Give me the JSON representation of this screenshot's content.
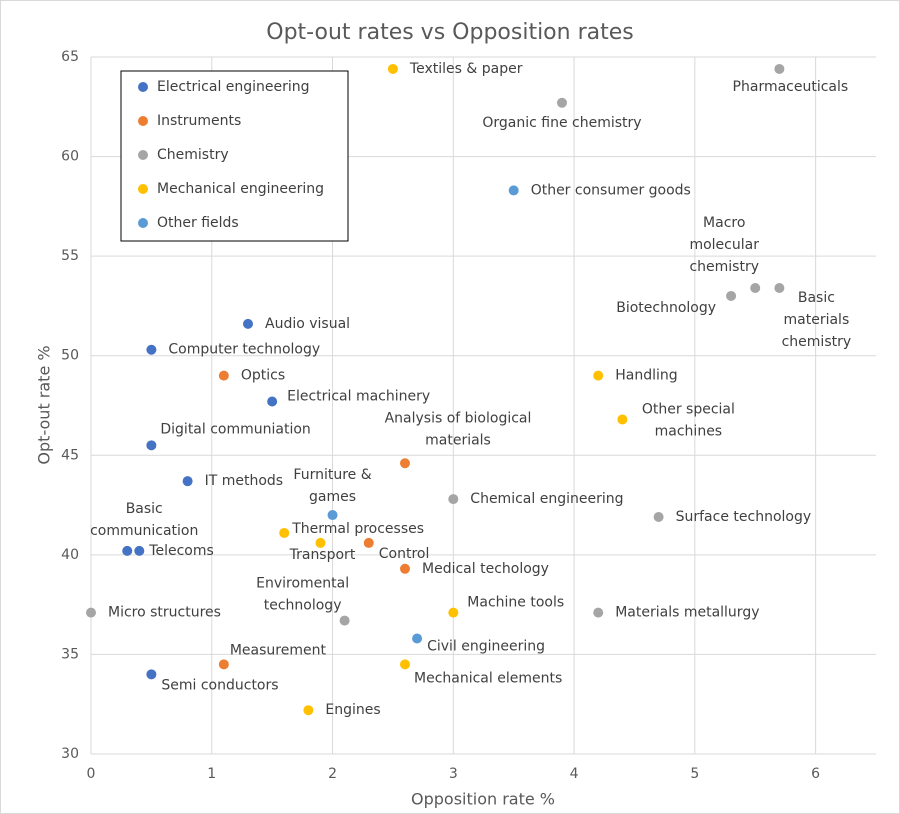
{
  "chart_data": {
    "type": "scatter",
    "title": "Opt-out rates vs Opposition rates",
    "x_label": "Opposition rate %",
    "y_label": "Opt-out rate %",
    "xlim": [
      0,
      6.5
    ],
    "ylim": [
      30,
      65
    ],
    "xticks": [
      0,
      1,
      2,
      3,
      4,
      5,
      6
    ],
    "yticks": [
      30,
      35,
      40,
      45,
      50,
      55,
      60,
      65
    ],
    "grid": true,
    "legend": "upper left",
    "series": [
      {
        "name": "Electrical engineering",
        "color": "#4472c4",
        "x": [
          1.3,
          0.5,
          1.5,
          0.5,
          0.8,
          0.3,
          0.4,
          0.5
        ],
        "y": [
          51.6,
          50.3,
          47.7,
          45.5,
          43.7,
          40.2,
          40.2,
          34.0
        ],
        "labels": [
          [
            "Audio visual"
          ],
          [
            "Computer technology"
          ],
          [
            "Electrical machinery"
          ],
          [
            "Digital communiation"
          ],
          [
            "IT methods"
          ],
          [
            "Basic",
            "communication"
          ],
          [
            "Telecoms"
          ],
          [
            "Semi conductors"
          ]
        ]
      },
      {
        "name": "Instruments",
        "color": "#ed7d31",
        "x": [
          1.1,
          2.6,
          2.3,
          2.6,
          1.1
        ],
        "y": [
          49.0,
          44.6,
          40.6,
          39.3,
          34.5
        ],
        "labels": [
          [
            "Optics"
          ],
          [
            "Analysis of biological",
            "materials"
          ],
          [
            "Control"
          ],
          [
            "Medical techology"
          ],
          [
            "Measurement"
          ]
        ]
      },
      {
        "name": "Chemistry",
        "color": "#a5a5a5",
        "x": [
          5.7,
          3.9,
          5.3,
          5.5,
          5.7,
          3.0,
          4.7,
          4.2,
          0,
          2.1
        ],
        "y": [
          64.4,
          62.7,
          53.0,
          53.4,
          53.4,
          42.8,
          41.9,
          37.1,
          37.1,
          36.7
        ],
        "labels": [
          [
            "Pharmaceuticals"
          ],
          [
            "Organic fine chemistry"
          ],
          [
            "Biotechnology"
          ],
          [
            "Macro",
            "molecular",
            "chemistry"
          ],
          [
            "Basic",
            "materials",
            "chemistry"
          ],
          [
            "Chemical engineering"
          ],
          [
            "Surface technology"
          ],
          [
            "Materials metallurgy"
          ],
          [
            "Micro structures"
          ],
          [
            "Enviromental",
            "technology"
          ]
        ]
      },
      {
        "name": "Mechanical engineering",
        "color": "#ffc000",
        "x": [
          2.5,
          4.2,
          4.4,
          1.6,
          1.9,
          3.0,
          2.6,
          1.8
        ],
        "y": [
          64.4,
          49.0,
          46.8,
          41.1,
          40.6,
          37.1,
          34.5,
          32.2
        ],
        "labels": [
          [
            "Textiles & paper"
          ],
          [
            "Handling"
          ],
          [
            "Other special",
            "machines"
          ],
          [
            "Thermal processes"
          ],
          [
            "Transport"
          ],
          [
            "Machine tools"
          ],
          [
            "Mechanical elements"
          ],
          [
            "Engines"
          ]
        ]
      },
      {
        "name": "Other fields",
        "color": "#5b9bd5",
        "x": [
          3.5,
          2.0,
          2.7
        ],
        "y": [
          58.3,
          42.0,
          35.8
        ],
        "labels": [
          [
            "Other consumer goods"
          ],
          [
            "Furniture &",
            "games"
          ],
          [
            "Civil engineering"
          ]
        ]
      }
    ]
  }
}
